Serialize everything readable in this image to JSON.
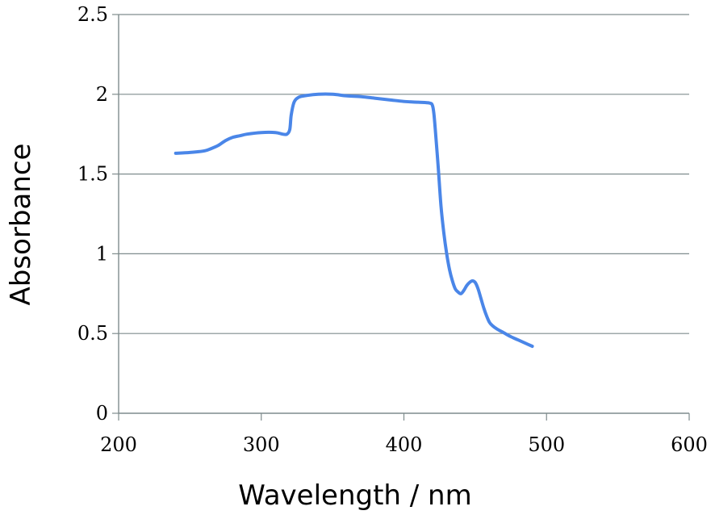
{
  "chart_data": {
    "type": "line",
    "title": "",
    "xlabel": "Wavelength  / nm",
    "ylabel": "Absorbance",
    "xlim": [
      200,
      600
    ],
    "ylim": [
      0,
      2.5
    ],
    "x_ticks": [
      "200",
      "300",
      "400",
      "500",
      "600"
    ],
    "y_ticks": [
      "0",
      "0.5",
      "1",
      "1.5",
      "2",
      "2.5"
    ],
    "grid": "horizontal",
    "legend": "none",
    "series": [
      {
        "color": "#4a86e8",
        "x": [
          240,
          250,
          260,
          265,
          270,
          275,
          280,
          285,
          290,
          300,
          310,
          315,
          318,
          320,
          321,
          323,
          326,
          330,
          340,
          350,
          360,
          370,
          380,
          390,
          400,
          410,
          418,
          420,
          421,
          422,
          424,
          426,
          428,
          430,
          432,
          434,
          436,
          438,
          440,
          442,
          444,
          446,
          448,
          450,
          452,
          454,
          456,
          458,
          460,
          462,
          465,
          470,
          475,
          480,
          485,
          490
        ],
        "y": [
          1.63,
          1.635,
          1.645,
          1.66,
          1.68,
          1.71,
          1.73,
          1.74,
          1.75,
          1.76,
          1.76,
          1.75,
          1.75,
          1.78,
          1.87,
          1.95,
          1.98,
          1.99,
          2.0,
          2.0,
          1.99,
          1.985,
          1.975,
          1.965,
          1.955,
          1.95,
          1.945,
          1.93,
          1.88,
          1.78,
          1.55,
          1.3,
          1.13,
          1.0,
          0.9,
          0.83,
          0.78,
          0.76,
          0.75,
          0.77,
          0.8,
          0.82,
          0.83,
          0.82,
          0.78,
          0.72,
          0.66,
          0.61,
          0.57,
          0.55,
          0.53,
          0.505,
          0.48,
          0.46,
          0.44,
          0.42
        ]
      }
    ]
  }
}
